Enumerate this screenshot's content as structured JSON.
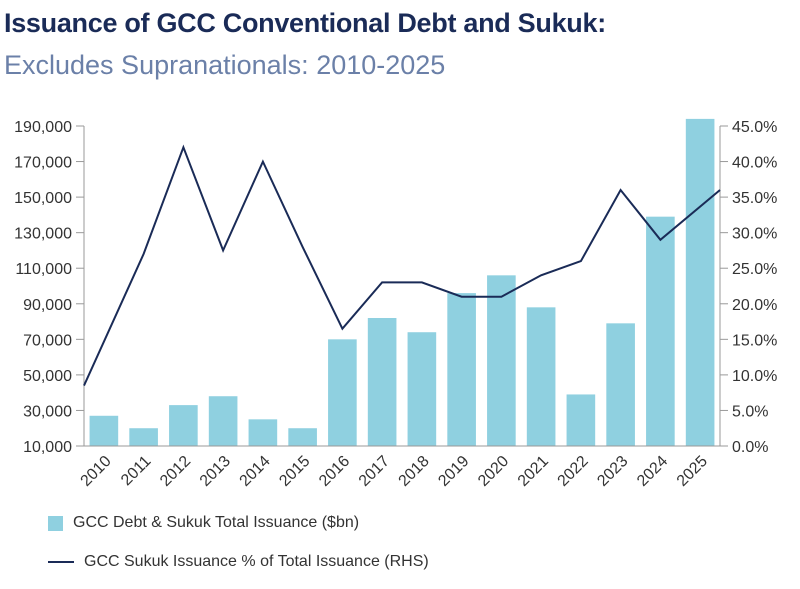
{
  "title": "Issuance of GCC Conventional Debt and Sukuk:",
  "subtitle": "Excludes Supranationals: 2010-2025",
  "chart_data": {
    "type": "bar",
    "categories": [
      "2010",
      "2011",
      "2012",
      "2013",
      "2014",
      "2015",
      "2016",
      "2017",
      "2018",
      "2019",
      "2020",
      "2021",
      "2022",
      "2023",
      "2024",
      "2025"
    ],
    "series": [
      {
        "name": "GCC Debt & Sukuk Total Issuance ($bn)",
        "type": "bar",
        "axis": "left",
        "color": "#8fd0e0",
        "values": [
          27000,
          20000,
          33000,
          38000,
          25000,
          20000,
          70000,
          82000,
          74000,
          96000,
          106000,
          88000,
          39000,
          79000,
          139000,
          194000
        ]
      },
      {
        "name": "GCC Sukuk Issuance % of Total Issuance (RHS)",
        "type": "line",
        "axis": "right",
        "color": "#1a2b57",
        "values": [
          8.5,
          27.0,
          42.0,
          27.5,
          40.0,
          28.0,
          16.5,
          23.0,
          23.0,
          21.0,
          21.0,
          24.0,
          26.0,
          36.0,
          29.0,
          36.0
        ]
      }
    ],
    "yaxis_left": {
      "ticks": [
        "190,000",
        "170,000",
        "150,000",
        "130,000",
        "110,000",
        "90,000",
        "70,000",
        "50,000",
        "30,000",
        "10,000"
      ],
      "min": 10000,
      "max": 190000
    },
    "yaxis_right": {
      "ticks": [
        "45.0%",
        "40.0%",
        "35.0%",
        "30.0%",
        "25.0%",
        "20.0%",
        "15.0%",
        "10.0%",
        "5.0%",
        "0.0%"
      ],
      "min": 0,
      "max": 45
    },
    "grid": false,
    "legend_position": "bottom-left"
  }
}
